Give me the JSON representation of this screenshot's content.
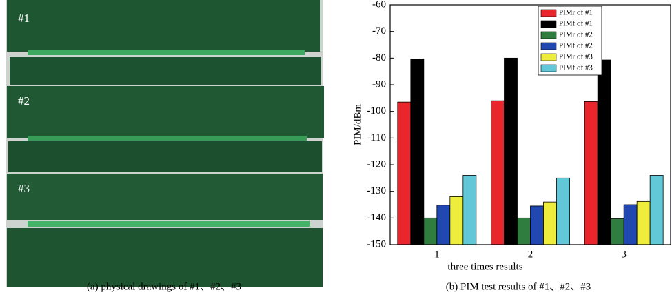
{
  "photo": {
    "labels": [
      "#1",
      "#2",
      "#3"
    ],
    "caption": "(a) physical drawings of #1、#2、#3"
  },
  "chart_data": {
    "type": "bar",
    "caption": "(b) PIM test results of #1、#2、#3",
    "xlabel": "three times results",
    "ylabel": "PIM/dBm",
    "categories": [
      "1",
      "2",
      "3"
    ],
    "series": [
      {
        "name": "PIMr of #1",
        "color": "#e8262b",
        "values": [
          -96.5,
          -96,
          -96.3
        ]
      },
      {
        "name": "PIMf of #1",
        "color": "#000000",
        "values": [
          -80.3,
          -80,
          -80.7
        ]
      },
      {
        "name": "PIMr of #2",
        "color": "#2f7d3f",
        "values": [
          -140,
          -140,
          -140.3
        ]
      },
      {
        "name": "PIMf of #2",
        "color": "#2148b0",
        "values": [
          -135.2,
          -135.5,
          -135
        ]
      },
      {
        "name": "PIMr of #3",
        "color": "#eeec3c",
        "values": [
          -132,
          -134,
          -133.8
        ]
      },
      {
        "name": "PIMf of #3",
        "color": "#62c8d8",
        "values": [
          -124,
          -125,
          -124
        ]
      }
    ],
    "ylim": [
      -150,
      -60
    ],
    "yticks": [
      -150,
      -140,
      -130,
      -120,
      -110,
      -100,
      -90,
      -80,
      -70,
      -60
    ],
    "legend": "upper right"
  }
}
